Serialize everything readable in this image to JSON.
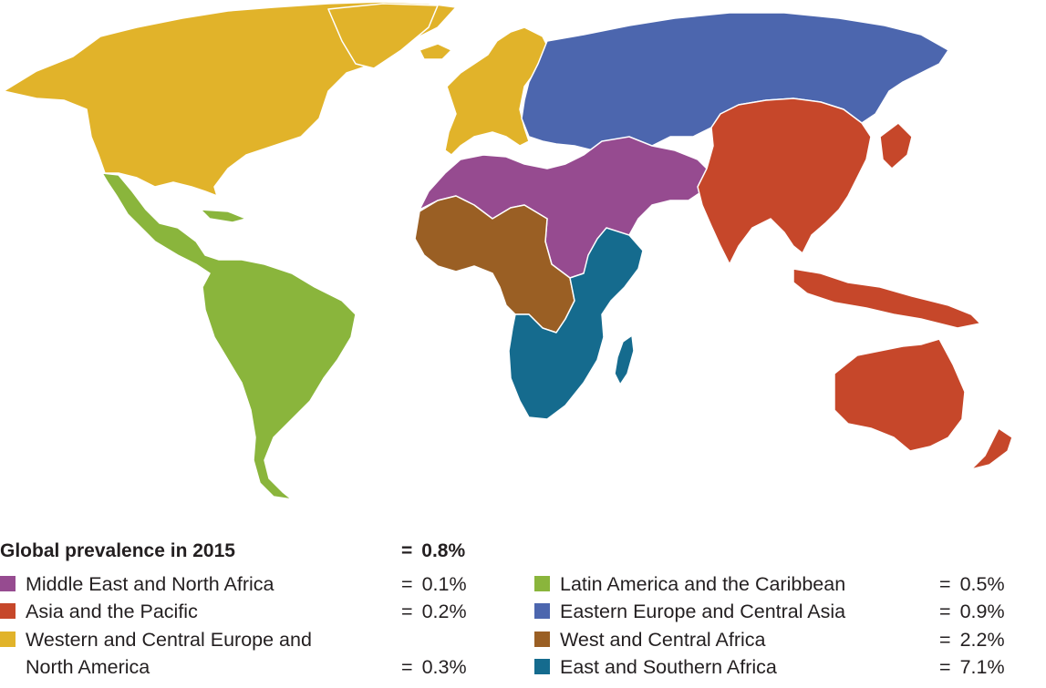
{
  "map": {
    "regions": [
      {
        "id": "western-central-europe-north-america",
        "color": "#e1b32a"
      },
      {
        "id": "latin-america-caribbean",
        "color": "#8ab53c"
      },
      {
        "id": "eastern-europe-central-asia",
        "color": "#4c66ae"
      },
      {
        "id": "middle-east-north-africa",
        "color": "#964b90"
      },
      {
        "id": "west-central-africa",
        "color": "#9a5f24"
      },
      {
        "id": "east-southern-africa",
        "color": "#156b8e"
      },
      {
        "id": "asia-pacific",
        "color": "#c6472a"
      }
    ]
  },
  "legend": {
    "total_label": "Global prevalence in 2015",
    "total_value": "0.8%",
    "eq": "=",
    "items": [
      {
        "label": "Middle East and North Africa",
        "value": "0.1%",
        "color": "#964b90"
      },
      {
        "label": "Asia and the Pacific",
        "value": "0.2%",
        "color": "#c6472a"
      },
      {
        "label": "Western and Central Europe and",
        "label2": "North America",
        "value": "0.3%",
        "color": "#e1b32a"
      },
      {
        "label": "Latin America and the Caribbean",
        "value": "0.5%",
        "color": "#8ab53c"
      },
      {
        "label": "Eastern Europe and Central Asia",
        "value": "0.9%",
        "color": "#4c66ae"
      },
      {
        "label": "West and Central Africa",
        "value": "2.2%",
        "color": "#9a5f24"
      },
      {
        "label": "East and Southern Africa",
        "value": "7.1%",
        "color": "#156b8e"
      }
    ]
  }
}
